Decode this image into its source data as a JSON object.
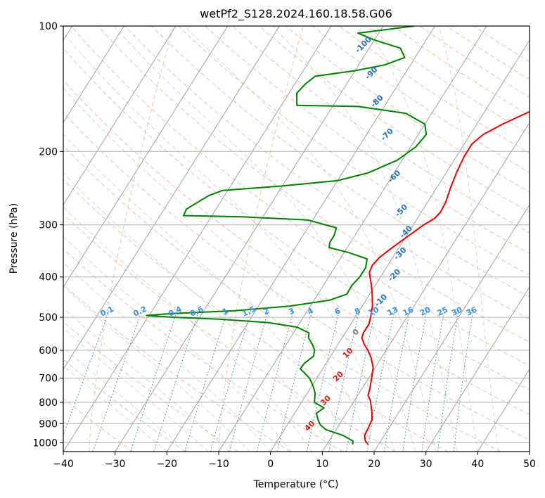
{
  "chart_data": {
    "type": "line",
    "title": "wetPf2_S128.2024.160.18.58.G06",
    "xlabel": "Temperature (°C)",
    "ylabel": "Pressure (hPa)",
    "xlim": [
      -40,
      50
    ],
    "ylim": [
      1050,
      100
    ],
    "y_scale": "log",
    "x_ticks": [
      "−40",
      "−30",
      "−20",
      "−10",
      "0",
      "10",
      "20",
      "30",
      "40",
      "50"
    ],
    "x_tick_values": [
      -40,
      -30,
      -20,
      -10,
      0,
      10,
      20,
      30,
      40,
      50
    ],
    "y_ticks": [
      "100",
      "200",
      "300",
      "400",
      "500",
      "600",
      "700",
      "800",
      "900",
      "1000"
    ],
    "y_tick_values": [
      100,
      200,
      300,
      400,
      500,
      600,
      700,
      800,
      900,
      1000
    ],
    "grid": true,
    "skew": true,
    "series": [
      {
        "key": "temperature",
        "color": "#e00000",
        "points": [
          [
            18.0,
            1010
          ],
          [
            17.0,
            990
          ],
          [
            16.2,
            960
          ],
          [
            16.0,
            920
          ],
          [
            15.7,
            880
          ],
          [
            14.8,
            845
          ],
          [
            14.0,
            820
          ],
          [
            13.0,
            790
          ],
          [
            12.0,
            770
          ],
          [
            11.5,
            740
          ],
          [
            10.6,
            700
          ],
          [
            9.6,
            660
          ],
          [
            8.0,
            625
          ],
          [
            6.5,
            600
          ],
          [
            5.0,
            580
          ],
          [
            3.8,
            560
          ],
          [
            3.5,
            545
          ],
          [
            3.5,
            520
          ],
          [
            3.0,
            500
          ],
          [
            2.0,
            470
          ],
          [
            0.5,
            440
          ],
          [
            -1.0,
            415
          ],
          [
            -2.7,
            390
          ],
          [
            -3.0,
            375
          ],
          [
            -2.6,
            360
          ],
          [
            -1.3,
            340
          ],
          [
            0.3,
            320
          ],
          [
            2.0,
            300
          ],
          [
            3.3,
            290
          ],
          [
            3.7,
            280
          ],
          [
            3.5,
            265
          ],
          [
            2.7,
            245
          ],
          [
            2.0,
            225
          ],
          [
            1.5,
            205
          ],
          [
            1.5,
            192
          ],
          [
            2.5,
            182
          ],
          [
            5.0,
            172
          ],
          [
            9.5,
            158
          ],
          [
            15.5,
            145
          ],
          [
            16.5,
            135
          ],
          [
            16.2,
            125
          ],
          [
            16.2,
            115
          ],
          [
            16.2,
            108
          ],
          [
            16.0,
            100
          ]
        ]
      },
      {
        "key": "dewpoint",
        "color": "#008000",
        "points": [
          [
            15.0,
            1010
          ],
          [
            14.6,
            990
          ],
          [
            12.0,
            960
          ],
          [
            8.0,
            930
          ],
          [
            6.3,
            905
          ],
          [
            5.3,
            880
          ],
          [
            4.2,
            850
          ],
          [
            5.0,
            825
          ],
          [
            2.5,
            800
          ],
          [
            2.0,
            780
          ],
          [
            1.5,
            760
          ],
          [
            0.2,
            730
          ],
          [
            -1.4,
            700
          ],
          [
            -3.0,
            680
          ],
          [
            -4.3,
            665
          ],
          [
            -4.2,
            645
          ],
          [
            -3.3,
            620
          ],
          [
            -3.8,
            600
          ],
          [
            -5.0,
            580
          ],
          [
            -6.5,
            560
          ],
          [
            -7.0,
            545
          ],
          [
            -10.0,
            528
          ],
          [
            -16.0,
            515
          ],
          [
            -26.0,
            505
          ],
          [
            -35.0,
            500
          ],
          [
            -40.5,
            495
          ],
          [
            -36.0,
            490
          ],
          [
            -24.0,
            482
          ],
          [
            -14.0,
            470
          ],
          [
            -7.0,
            455
          ],
          [
            -4.4,
            440
          ],
          [
            -4.5,
            420
          ],
          [
            -4.0,
            400
          ],
          [
            -4.0,
            380
          ],
          [
            -4.8,
            362
          ],
          [
            -9.0,
            350
          ],
          [
            -13.5,
            340
          ],
          [
            -14.0,
            330
          ],
          [
            -14.0,
            318
          ],
          [
            -14.5,
            305
          ],
          [
            -21.0,
            292
          ],
          [
            -34.0,
            287
          ],
          [
            -45.5,
            285
          ],
          [
            -45.7,
            275
          ],
          [
            -44.0,
            262
          ],
          [
            -43.0,
            255
          ],
          [
            -41.0,
            248
          ],
          [
            -30.0,
            242
          ],
          [
            -20.0,
            235
          ],
          [
            -15.0,
            225
          ],
          [
            -11.0,
            210
          ],
          [
            -9.0,
            195
          ],
          [
            -8.5,
            182
          ],
          [
            -10.0,
            172
          ],
          [
            -15.0,
            162
          ],
          [
            -25.0,
            156
          ],
          [
            -37.0,
            155
          ],
          [
            -38.5,
            145
          ],
          [
            -38.0,
            138
          ],
          [
            -37.0,
            132
          ],
          [
            -30.0,
            128
          ],
          [
            -25.0,
            124
          ],
          [
            -22.0,
            119
          ],
          [
            -24.0,
            113
          ],
          [
            -30.0,
            108
          ],
          [
            -34.0,
            104
          ],
          [
            -24.0,
            100
          ]
        ]
      }
    ],
    "dry_adiabat_labels": [
      "-100",
      "-90",
      "-80",
      "-70",
      "-60",
      "-50",
      "-40",
      "-30",
      "-20",
      "-10",
      "0",
      "10",
      "20",
      "30",
      "40"
    ],
    "dry_adiabat_label_positions": [
      [
        -31,
        112
      ],
      [
        -26,
        131
      ],
      [
        -21.5,
        153
      ],
      [
        -15.5,
        184
      ],
      [
        -9,
        232
      ],
      [
        -3.5,
        280
      ],
      [
        0,
        315
      ],
      [
        1.5,
        355
      ],
      [
        3,
        400
      ],
      [
        3.5,
        460
      ],
      [
        2.5,
        548
      ],
      [
        3.5,
        615
      ],
      [
        4.5,
        700
      ],
      [
        5,
        800
      ],
      [
        5,
        920
      ]
    ],
    "mixing_ratio_labels": [
      "0.1",
      "0.2",
      "0.4",
      "0.6",
      "1",
      "1.5",
      "2",
      "3",
      "4",
      "6",
      "8",
      "10",
      "13",
      "16",
      "20",
      "25",
      "30",
      "36"
    ],
    "mixing_ratio_values": [
      0.1,
      0.2,
      0.4,
      0.6,
      1,
      1.5,
      2,
      3,
      4,
      6,
      8,
      10,
      13,
      16,
      20,
      25,
      30,
      36
    ],
    "mixing_ratio_label_pressure": 490
  }
}
